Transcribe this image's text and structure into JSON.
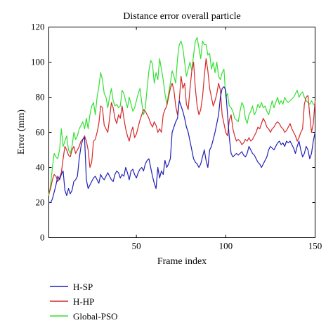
{
  "chart_data": {
    "type": "line",
    "title": "Distance error overall particle",
    "xlabel": "Frame index",
    "ylabel": "Error (mm)",
    "xlim": [
      1,
      150
    ],
    "ylim": [
      0,
      120
    ],
    "xticks": [
      50,
      100,
      150
    ],
    "yticks": [
      0,
      20,
      40,
      60,
      80,
      100,
      120
    ],
    "grid": false,
    "legend_position": "bottom-left, below plot",
    "series": [
      {
        "name": "H-SP",
        "color": "#1f1fb4",
        "values": [
          20,
          20,
          22,
          26,
          30,
          35,
          33,
          36,
          38,
          27,
          24,
          28,
          25,
          27,
          32,
          33,
          35,
          45,
          52,
          56,
          57,
          33,
          28,
          30,
          32,
          34,
          35,
          33,
          31,
          36,
          34,
          33,
          35,
          37,
          35,
          33,
          32,
          36,
          38,
          37,
          34,
          36,
          35,
          40,
          37,
          33,
          38,
          39,
          36,
          34,
          37,
          39,
          40,
          38,
          42,
          44,
          45,
          40,
          35,
          31,
          28,
          40,
          34,
          38,
          36,
          44,
          40,
          42,
          45,
          60,
          63,
          66,
          68,
          78,
          75,
          72,
          68,
          63,
          60,
          55,
          50,
          45,
          43,
          42,
          40,
          42,
          46,
          50,
          44,
          40,
          50,
          52,
          56,
          60,
          65,
          70,
          80,
          85,
          86,
          84,
          70,
          57,
          48,
          46,
          47,
          48,
          47,
          48,
          49,
          47,
          46,
          48,
          52,
          50,
          48,
          47,
          45,
          43,
          42,
          40,
          42,
          44,
          46,
          50,
          52,
          51,
          50,
          52,
          54,
          55,
          53,
          54,
          52,
          55,
          54,
          55,
          53,
          51,
          48,
          52,
          55,
          50,
          46,
          48,
          52,
          50,
          45,
          48,
          55,
          60
        ]
      },
      {
        "name": "H-HP",
        "color": "#d62728",
        "values": [
          25,
          28,
          33,
          36,
          35,
          32,
          34,
          37,
          45,
          52,
          50,
          47,
          46,
          50,
          52,
          48,
          50,
          52,
          55,
          56,
          58,
          55,
          50,
          40,
          43,
          55,
          56,
          60,
          65,
          75,
          74,
          64,
          62,
          60,
          68,
          77,
          74,
          68,
          65,
          70,
          68,
          75,
          68,
          62,
          58,
          55,
          60,
          63,
          57,
          59,
          63,
          67,
          70,
          73,
          72,
          70,
          68,
          65,
          63,
          66,
          64,
          60,
          62,
          60,
          70,
          73,
          75,
          80,
          85,
          88,
          84,
          75,
          70,
          78,
          92,
          85,
          88,
          76,
          73,
          85,
          95,
          100,
          85,
          75,
          70,
          73,
          80,
          92,
          102,
          95,
          85,
          80,
          75,
          78,
          82,
          88,
          84,
          70,
          65,
          60,
          58,
          67,
          70,
          62,
          58,
          55,
          56,
          55,
          53,
          54,
          56,
          55,
          57,
          55,
          56,
          58,
          60,
          63,
          62,
          65,
          68,
          66,
          63,
          62,
          60,
          62,
          63,
          65,
          66,
          65,
          63,
          62,
          60,
          61,
          63,
          65,
          62,
          60,
          58,
          55,
          57,
          60,
          62,
          76,
          80,
          81,
          70,
          60,
          65,
          78
        ]
      },
      {
        "name": "Global-PSO",
        "color": "#33e033",
        "values": [
          24,
          30,
          40,
          48,
          46,
          45,
          50,
          62,
          52,
          55,
          58,
          50,
          48,
          52,
          60,
          56,
          58,
          62,
          64,
          66,
          62,
          68,
          62,
          70,
          75,
          77,
          70,
          80,
          86,
          94,
          90,
          82,
          80,
          74,
          80,
          85,
          78,
          75,
          76,
          74,
          75,
          84,
          82,
          78,
          74,
          80,
          76,
          72,
          74,
          78,
          82,
          85,
          77,
          70,
          74,
          85,
          95,
          101,
          99,
          88,
          94,
          90,
          102,
          96,
          90,
          82,
          76,
          82,
          88,
          95,
          92,
          88,
          102,
          110,
          112,
          108,
          100,
          92,
          96,
          100,
          95,
          104,
          112,
          114,
          108,
          102,
          112,
          110,
          110,
          104,
          105,
          96,
          100,
          94,
          100,
          92,
          90,
          94,
          96,
          80,
          82,
          75,
          74,
          72,
          68,
          67,
          66,
          72,
          77,
          75,
          68,
          65,
          70,
          72,
          75,
          70,
          72,
          76,
          74,
          77,
          74,
          75,
          72,
          70,
          74,
          78,
          74,
          77,
          80,
          76,
          78,
          76,
          80,
          78,
          77,
          78,
          79,
          80,
          82,
          84,
          80,
          82,
          83,
          80,
          78,
          77,
          76,
          78,
          76,
          76
        ]
      }
    ]
  }
}
